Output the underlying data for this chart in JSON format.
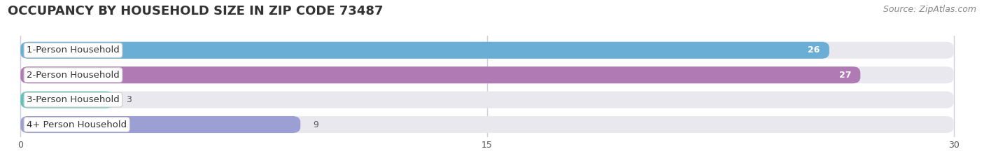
{
  "title": "OCCUPANCY BY HOUSEHOLD SIZE IN ZIP CODE 73487",
  "source": "Source: ZipAtlas.com",
  "categories": [
    "1-Person Household",
    "2-Person Household",
    "3-Person Household",
    "4+ Person Household"
  ],
  "values": [
    26,
    27,
    3,
    9
  ],
  "bar_colors": [
    "#6aaed6",
    "#b07ab5",
    "#5fc4b8",
    "#9b9fd4"
  ],
  "bar_bg_color": "#e8e8ee",
  "xlim": [
    -0.5,
    30
  ],
  "xticks": [
    0,
    15,
    30
  ],
  "title_fontsize": 13,
  "label_fontsize": 9.5,
  "value_fontsize": 9,
  "source_fontsize": 9,
  "background_color": "#ffffff",
  "grid_color": "#ccccdd"
}
